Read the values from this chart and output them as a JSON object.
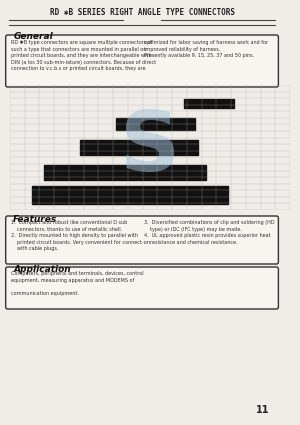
{
  "title": "RD ✱B SERIES RIGHT ANGLE TYPE CONNECTORS",
  "bg_color": "#f0ede8",
  "page_number": "11",
  "general_title": "General",
  "general_text_left": "RD ✱B type connectors are square multiple connectors of\nsuch a type that connectors are mounted in parallel on\nprinted circuit boards, and they are interchangeable with\nDIN (a los 30 sub-min-iature) connectors. Because of direct\nconnection to v.c.b.s or printed circuit boards, they are",
  "general_text_right": "optimized for labor saving of harness work and for\nimproved reliability of harness.\nPresently available 9, 15, 25, 37 and 50 pins.",
  "features_title": "Features",
  "features_text_left": "1.  Compact and robust like conventional D sub\n    connectors, thanks to use of metallic shell.\n2.  Directly mounted to high density to parallel with\n    printed circuit boards. Very convenient for connect-on\n    with cable plugs.",
  "features_text_right": "3.  Diversified combinations of clip and soldering (HD\n    type) or IDC (IFC type) may be made.\n4.  UL approved plastic resin provides superior heat\n    resistance and chemical resistance.",
  "application_title": "Application",
  "application_text": "Computers, peripheral and terminals, devices, control\nequipment, measuring apparatus and MODEMS of\n\ncommunication equipment."
}
